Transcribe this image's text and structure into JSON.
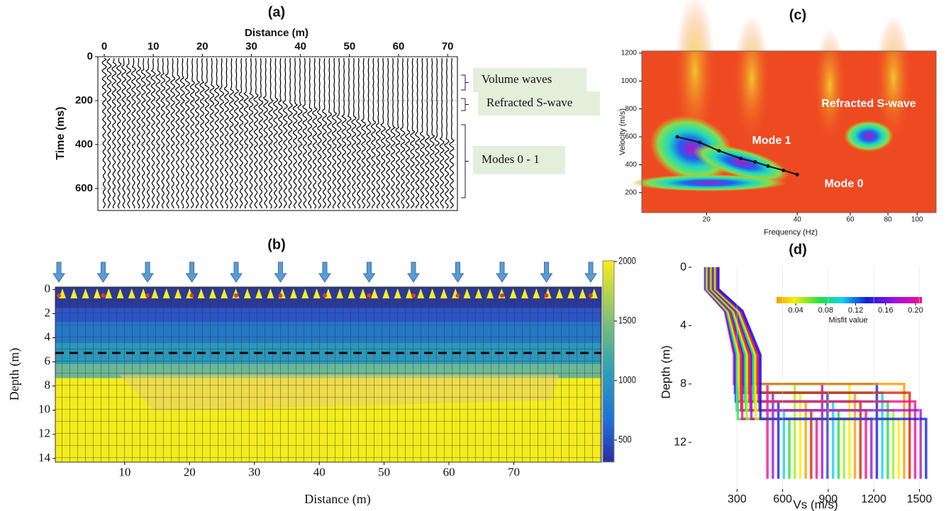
{
  "chart_data": [
    {
      "type": "wiggle",
      "label": "(a)",
      "x_label": "Distance (m)",
      "y_label": "Time (ms)",
      "xlim": [
        -1.3,
        72
      ],
      "xticks": [
        0,
        10,
        20,
        30,
        40,
        50,
        60,
        70
      ],
      "ylim": [
        0,
        700
      ],
      "yticks": [
        0,
        200,
        400,
        600
      ],
      "y_inverted": true,
      "annotations": [
        "Volume waves",
        "Refracted S-wave",
        "Modes 0 - 1"
      ]
    },
    {
      "type": "heatmap",
      "label": "(b)",
      "x_label": "Distance (m)",
      "y_label": "Depth (m)",
      "xlim": [
        -0.7,
        83.5
      ],
      "xticks": [
        10,
        20,
        30,
        40,
        50,
        60,
        70
      ],
      "ylim": [
        -0.2,
        14.3
      ],
      "yticks": [
        0,
        2,
        4,
        6,
        8,
        10,
        12,
        14
      ],
      "y_inverted": true,
      "clim": [
        315,
        2006
      ],
      "cticks": [
        500,
        1000,
        1500,
        2000
      ]
    },
    {
      "type": "line",
      "label": "(c)",
      "x_label": "Frequency (Hz)",
      "y_label": "Velocity (m/s)",
      "x_log": true,
      "xlim": [
        12.2,
        115.6
      ],
      "xticks": [
        20,
        40,
        60,
        80,
        100
      ],
      "ylim": [
        57,
        1215
      ],
      "yticks": [
        200,
        400,
        600,
        800,
        1000,
        1200
      ],
      "x": [
        16,
        19,
        22,
        26,
        29,
        32,
        36,
        40
      ],
      "values": [
        600,
        560,
        500,
        445,
        420,
        390,
        360,
        330
      ],
      "color": "#111111",
      "annotations": [
        "Mode 1",
        "Refracted S-wave",
        "Mode 0"
      ]
    },
    {
      "type": "profiles",
      "label": "(d)",
      "x_label": "Vs (m/s)",
      "y_label": "Depth (m)",
      "xlim": [
        0,
        1610
      ],
      "xticks": [
        300,
        600,
        900,
        1200,
        1500
      ],
      "ylim": [
        -0.1,
        15.2
      ],
      "yticks": [
        0,
        4,
        8,
        12
      ],
      "y_inverted": true,
      "colorbar_label": "Misfit value",
      "clim": [
        0.0144,
        0.2085
      ],
      "cticks": [
        0.04,
        0.08,
        0.12,
        0.16,
        {
          "value": 0.2,
          "label": "0.20"
        }
      ]
    }
  ]
}
